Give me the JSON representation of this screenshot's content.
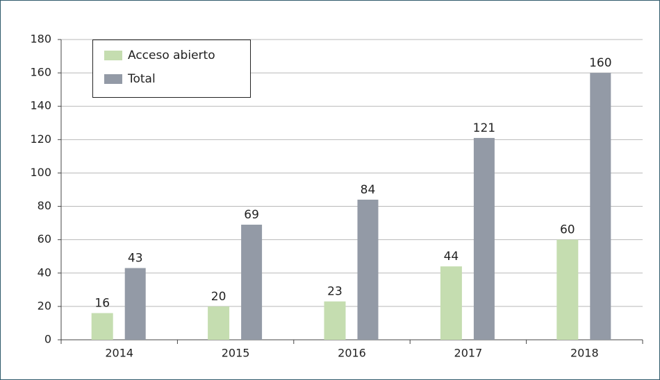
{
  "chart_data": {
    "type": "bar",
    "categories": [
      "2014",
      "2015",
      "2016",
      "2017",
      "2018"
    ],
    "series": [
      {
        "name": "Acceso abierto",
        "color": "#c5ddb0",
        "values": [
          16,
          20,
          23,
          44,
          60
        ]
      },
      {
        "name": "Total",
        "color": "#939aa6",
        "values": [
          43,
          69,
          84,
          121,
          160
        ]
      }
    ],
    "ylim": [
      0,
      180
    ],
    "yticks": [
      0,
      20,
      40,
      60,
      80,
      100,
      120,
      140,
      160,
      180
    ],
    "grid": true,
    "legend": "top-left"
  }
}
